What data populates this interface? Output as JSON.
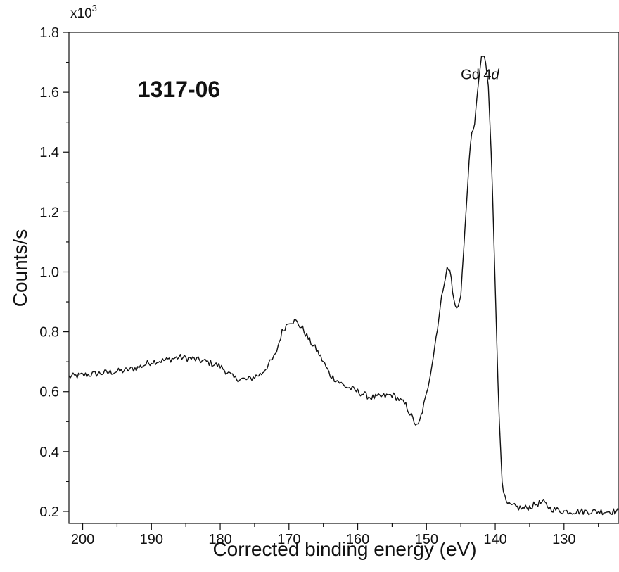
{
  "chart_data": {
    "type": "line",
    "title": "",
    "xlabel": "Corrected binding energy (eV)",
    "ylabel": "Counts/s",
    "y_multiplier": {
      "base": "x10",
      "exponent": "3"
    },
    "xlim": [
      202,
      122
    ],
    "ylim": [
      0.16,
      1.8
    ],
    "x_reversed": true,
    "x_ticks": [
      200,
      190,
      180,
      170,
      160,
      150,
      140,
      130
    ],
    "x_tick_labels": [
      "200",
      "190",
      "180",
      "170",
      "160",
      "150",
      "140",
      "130"
    ],
    "y_ticks": [
      0.2,
      0.4,
      0.6,
      0.8,
      1.0,
      1.2,
      1.4,
      1.6,
      1.8
    ],
    "y_tick_labels": [
      "0.2",
      "0.4",
      "0.6",
      "0.8",
      "1.0",
      "1.2",
      "1.4",
      "1.6",
      "1.8"
    ],
    "grid": false,
    "annotations": [
      {
        "text": "1317-06",
        "x": 192,
        "y": 1.61
      },
      {
        "text": "Gd 4d",
        "x": 145,
        "y": 1.66
      }
    ],
    "series": [
      {
        "x": [
          202,
          200,
          198,
          196,
          194,
          192,
          190,
          188,
          186,
          184,
          182,
          180,
          178,
          176,
          174,
          172,
          171,
          170,
          169,
          168,
          167,
          166,
          165,
          164,
          162,
          160,
          158,
          156,
          155,
          154,
          153,
          152,
          151.3,
          151,
          150,
          149,
          148,
          147.5,
          147,
          146.5,
          146,
          145.5,
          145,
          144.5,
          144,
          143.5,
          143,
          142.5,
          142,
          141.5,
          141,
          140.5,
          140,
          139.5,
          139,
          138.5,
          138,
          137,
          136,
          135,
          134,
          133,
          132,
          131,
          130,
          128,
          126,
          124,
          122
        ],
        "y": [
          0.65,
          0.655,
          0.66,
          0.665,
          0.67,
          0.68,
          0.7,
          0.705,
          0.715,
          0.71,
          0.7,
          0.685,
          0.645,
          0.64,
          0.66,
          0.72,
          0.8,
          0.835,
          0.835,
          0.81,
          0.77,
          0.74,
          0.7,
          0.655,
          0.62,
          0.6,
          0.58,
          0.585,
          0.59,
          0.575,
          0.555,
          0.51,
          0.48,
          0.5,
          0.59,
          0.72,
          0.88,
          0.96,
          1.01,
          1.0,
          0.9,
          0.87,
          0.93,
          1.1,
          1.3,
          1.45,
          1.5,
          1.62,
          1.72,
          1.72,
          1.62,
          1.35,
          0.95,
          0.55,
          0.3,
          0.23,
          0.22,
          0.215,
          0.21,
          0.215,
          0.225,
          0.23,
          0.21,
          0.205,
          0.2,
          0.2,
          0.2,
          0.2,
          0.2
        ]
      }
    ]
  }
}
